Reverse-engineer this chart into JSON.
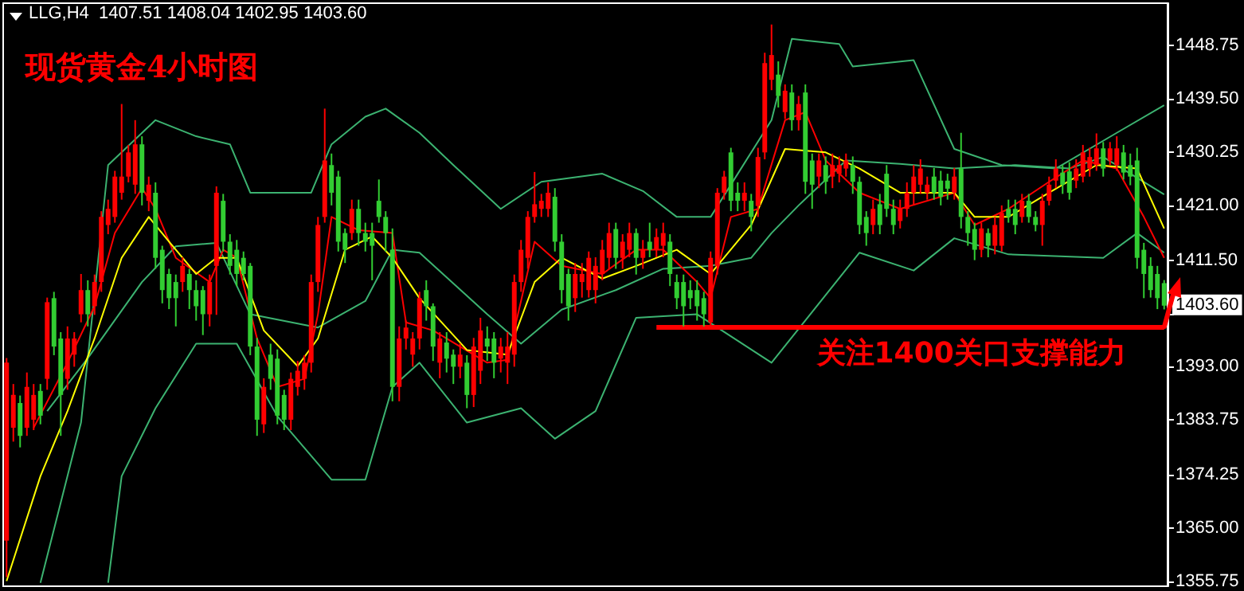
{
  "chart_data": {
    "type": "candlestick",
    "title": "LLG,H4  1407.51 1408.04 1402.95 1403.60",
    "subtitle": "现货黄金4小时图",
    "categories": [
      null,
      null,
      null,
      null,
      null,
      null,
      null,
      null,
      null,
      null,
      null,
      null,
      null,
      null,
      null,
      null,
      null,
      null,
      null,
      null,
      null,
      null,
      null,
      null,
      null,
      null,
      null,
      null,
      null,
      null,
      null,
      null,
      null,
      null,
      null,
      null,
      null,
      null,
      null,
      null,
      null,
      null,
      null,
      null,
      null,
      null,
      null,
      null,
      null,
      null,
      null,
      null,
      null,
      null,
      null,
      null,
      null,
      null,
      null,
      null,
      null,
      null,
      null,
      null,
      null,
      null,
      null,
      null,
      null,
      null,
      null,
      null,
      null,
      null,
      null,
      null,
      null,
      null,
      null,
      null,
      null,
      null,
      null,
      null,
      null,
      null,
      null,
      null,
      null,
      null,
      null,
      null,
      null,
      null,
      null,
      null,
      null,
      null,
      null,
      null,
      null,
      null,
      null,
      null,
      null,
      null,
      null,
      null,
      null,
      null,
      null,
      null,
      null,
      null,
      null,
      null,
      null,
      null,
      null,
      null,
      null,
      null,
      null,
      null,
      null,
      null,
      null,
      null,
      null,
      null,
      null,
      null,
      null,
      null,
      null,
      null,
      null,
      null,
      null,
      null,
      null,
      null,
      null,
      null,
      null,
      null,
      null,
      null,
      null,
      null,
      null,
      null,
      null,
      null,
      null,
      null,
      null,
      null,
      null,
      null,
      null,
      null,
      null,
      null,
      null,
      null,
      null,
      null,
      null,
      null,
      null,
      null
    ],
    "ylim": [
      1354.9,
      1456.1
    ],
    "yticks": [
      1448.75,
      {
        "value": 1439.5,
        "label": "1439.50"
      },
      1430.25,
      {
        "value": 1421,
        "label": "1421.00"
      },
      {
        "value": 1411.5,
        "label": "1411.50"
      },
      {
        "value": 1402.25,
        "label": null
      },
      {
        "value": 1393,
        "label": "1393.00"
      },
      1383.75,
      1374.25,
      {
        "value": 1365,
        "label": "1365.00"
      },
      1355.75
    ],
    "tick_labels": "y",
    "line_style": "solid",
    "ref_lines": [
      {
        "axis": "y",
        "value": 1400,
        "label": "关注1400关口支撑能力",
        "color": "#ff0000"
      }
    ],
    "annotations": [
      "1403.60"
    ],
    "ohlc": [
      [
        1362.8,
        1394.5,
        1356.5,
        1393.7
      ],
      [
        1382.4,
        1390,
        1380,
        1388.1
      ],
      [
        1386.7,
        1388,
        1379,
        1381
      ],
      [
        1382.4,
        1392,
        1381,
        1389.5
      ],
      [
        1383.8,
        1390,
        1382,
        1388.1
      ],
      [
        1388.8,
        1390,
        1383,
        1384.5
      ],
      [
        1390.9,
        1405,
        1389,
        1404.2
      ],
      [
        1404.9,
        1406,
        1395,
        1396.5
      ],
      [
        1397.9,
        1399,
        1381,
        1388.1
      ],
      [
        1390.9,
        1400,
        1389,
        1397.9
      ],
      [
        1395.1,
        1399,
        1393,
        1397.9
      ],
      [
        1402.1,
        1409.1,
        1400.7,
        1406.3
      ],
      [
        1406.3,
        1408,
        1400,
        1402.1
      ],
      [
        1403.5,
        1409,
        1402,
        1407.7
      ],
      [
        1407.7,
        1420,
        1406,
        1419
      ],
      [
        1417.6,
        1422,
        1416,
        1420.4
      ],
      [
        1419,
        1427,
        1418,
        1426
      ],
      [
        1423.2,
        1438.6,
        1422,
        1426
      ],
      [
        1426,
        1431.5,
        1425,
        1430.2
      ],
      [
        1424.6,
        1435.8,
        1423,
        1431.6
      ],
      [
        1431.6,
        1433,
        1421,
        1423.2
      ],
      [
        1421.8,
        1426,
        1420,
        1424.6
      ],
      [
        1423.2,
        1425,
        1410,
        1411.9
      ],
      [
        1413.3,
        1414,
        1404,
        1406.3
      ],
      [
        1409.1,
        1410,
        1403,
        1404.9
      ],
      [
        1407.7,
        1409,
        1400,
        1404.9
      ],
      [
        1407.7,
        1412,
        1406,
        1410.5
      ],
      [
        1409.1,
        1410,
        1403,
        1406.3
      ],
      [
        1406.3,
        1408,
        1401,
        1403.5
      ],
      [
        1406.3,
        1407,
        1398.5,
        1402.1
      ],
      [
        1402.1,
        1409,
        1400,
        1407.7
      ],
      [
        1410.5,
        1424.3,
        1402,
        1423.2
      ],
      [
        1421.8,
        1423,
        1413,
        1414.7
      ],
      [
        1414.7,
        1416,
        1409,
        1410.5
      ],
      [
        1413.3,
        1415,
        1407,
        1409.1
      ],
      [
        1411.9,
        1413,
        1408,
        1409.1
      ],
      [
        1410.5,
        1411,
        1395,
        1396.5
      ],
      [
        1396.5,
        1398,
        1381,
        1383.8
      ],
      [
        1383,
        1391,
        1381.5,
        1389.5
      ],
      [
        1395.1,
        1397,
        1389,
        1390.9
      ],
      [
        1394.4,
        1396,
        1383,
        1384.5
      ],
      [
        1388.1,
        1389,
        1382,
        1383.8
      ],
      [
        1383.8,
        1392,
        1382,
        1390.9
      ],
      [
        1389.5,
        1394,
        1388,
        1392.3
      ],
      [
        1390.9,
        1395,
        1389,
        1393.7
      ],
      [
        1393.7,
        1409,
        1392,
        1407.7
      ],
      [
        1407.7,
        1419,
        1406,
        1417.6
      ],
      [
        1419,
        1437.8,
        1418,
        1428.8
      ],
      [
        1428,
        1430,
        1421,
        1423.2
      ],
      [
        1426,
        1427,
        1413,
        1414.7
      ],
      [
        1416.2,
        1417,
        1411,
        1413.3
      ],
      [
        1416.2,
        1422,
        1415,
        1420.4
      ],
      [
        1420.4,
        1422,
        1414,
        1416.2
      ],
      [
        1416.2,
        1418,
        1413,
        1414.7
      ],
      [
        1416.2,
        1418,
        1408,
        1414
      ],
      [
        1421.8,
        1425.5,
        1418,
        1419
      ],
      [
        1419,
        1420,
        1413,
        1416.2
      ],
      [
        1413.3,
        1417,
        1387,
        1389.5
      ],
      [
        1389.5,
        1400,
        1387,
        1397.9
      ],
      [
        1397.9,
        1401,
        1396,
        1399.8
      ],
      [
        1395.1,
        1399,
        1393,
        1397.9
      ],
      [
        1397.9,
        1406,
        1396,
        1404.9
      ],
      [
        1406.3,
        1408,
        1401,
        1403.5
      ],
      [
        1403.5,
        1404,
        1394,
        1396.5
      ],
      [
        1393.7,
        1399,
        1391,
        1397.9
      ],
      [
        1397.2,
        1399,
        1392,
        1394.4
      ],
      [
        1395.1,
        1396,
        1390,
        1393
      ],
      [
        1393,
        1397,
        1391,
        1395.1
      ],
      [
        1393.7,
        1395,
        1385.8,
        1388.1
      ],
      [
        1388.1,
        1398,
        1386,
        1396.5
      ],
      [
        1392.3,
        1401.5,
        1390,
        1399.3
      ],
      [
        1397.9,
        1400,
        1394,
        1396.5
      ],
      [
        1397.9,
        1399,
        1391,
        1393.7
      ],
      [
        1394.4,
        1398,
        1392,
        1396.5
      ],
      [
        1393.7,
        1399,
        1390,
        1396.5
      ],
      [
        1395.1,
        1409,
        1393,
        1407.7
      ],
      [
        1407.7,
        1415,
        1406,
        1413.3
      ],
      [
        1411.9,
        1420,
        1410,
        1419
      ],
      [
        1419,
        1426.8,
        1418,
        1421.2
      ],
      [
        1420.4,
        1423,
        1419,
        1421.8
      ],
      [
        1420.4,
        1425,
        1419,
        1423.2
      ],
      [
        1422.5,
        1424,
        1413,
        1414.7
      ],
      [
        1414.7,
        1416,
        1404,
        1406.3
      ],
      [
        1409.1,
        1410,
        1401,
        1403.5
      ],
      [
        1404.9,
        1411,
        1402.5,
        1409.1
      ],
      [
        1407.7,
        1411,
        1405,
        1409.1
      ],
      [
        1406.3,
        1413,
        1405,
        1411.9
      ],
      [
        1406.3,
        1412,
        1404,
        1410.5
      ],
      [
        1409.1,
        1415,
        1408,
        1413.3
      ],
      [
        1411.9,
        1418,
        1410,
        1416.2
      ],
      [
        1416.9,
        1418,
        1410,
        1411.9
      ],
      [
        1411.9,
        1416,
        1410,
        1414.7
      ],
      [
        1413.3,
        1418,
        1412,
        1416.2
      ],
      [
        1416.2,
        1417,
        1409,
        1411.9
      ],
      [
        1411.9,
        1415,
        1410,
        1413.3
      ],
      [
        1414.7,
        1418,
        1412,
        1413.3
      ],
      [
        1413.3,
        1417,
        1412,
        1415.5
      ],
      [
        1414,
        1418,
        1412,
        1416.2
      ],
      [
        1414.7,
        1416,
        1407,
        1409.1
      ],
      [
        1407.7,
        1409,
        1403,
        1404.9
      ],
      [
        1407.7,
        1409,
        1400,
        1403.5
      ],
      [
        1406.3,
        1408,
        1403,
        1404.9
      ],
      [
        1406.3,
        1408,
        1401,
        1403.5
      ],
      [
        1404.9,
        1406,
        1400,
        1402.1
      ],
      [
        1400.7,
        1413,
        1399.5,
        1411.9
      ],
      [
        1410.5,
        1424,
        1409,
        1423.2
      ],
      [
        1423.2,
        1427,
        1422,
        1426
      ],
      [
        1430.2,
        1431,
        1420,
        1421.8
      ],
      [
        1423.2,
        1425,
        1420,
        1421.8
      ],
      [
        1421.8,
        1425,
        1420,
        1423.2
      ],
      [
        1421.8,
        1423,
        1416.5,
        1419
      ],
      [
        1420.9,
        1431,
        1419,
        1429.4
      ],
      [
        1430.2,
        1447.5,
        1429,
        1445.7
      ],
      [
        1442.8,
        1452.4,
        1441,
        1447.1
      ],
      [
        1443.7,
        1446,
        1438,
        1440
      ],
      [
        1437.2,
        1442,
        1436,
        1440.9
      ],
      [
        1440.6,
        1442,
        1434,
        1435.8
      ],
      [
        1435.8,
        1440,
        1434,
        1438.6
      ],
      [
        1440.6,
        1442,
        1423,
        1425.1
      ],
      [
        1428.8,
        1430,
        1420.4,
        1424.6
      ],
      [
        1426,
        1430,
        1424,
        1428.8
      ],
      [
        1428,
        1429.5,
        1423,
        1425.1
      ],
      [
        1426,
        1430,
        1424,
        1428
      ],
      [
        1426.5,
        1429.5,
        1425,
        1428
      ],
      [
        1427.4,
        1430,
        1426,
        1428.8
      ],
      [
        1428,
        1429.5,
        1423,
        1425.1
      ],
      [
        1425.1,
        1426,
        1416,
        1417.6
      ],
      [
        1419,
        1420,
        1414,
        1416.2
      ],
      [
        1417.6,
        1422,
        1416,
        1420.4
      ],
      [
        1421.2,
        1423,
        1416,
        1417.6
      ],
      [
        1426.5,
        1428,
        1419,
        1420.4
      ],
      [
        1420.4,
        1422,
        1416,
        1417.6
      ],
      [
        1418.3,
        1422,
        1417,
        1420.4
      ],
      [
        1420.4,
        1425,
        1419,
        1423.2
      ],
      [
        1423.2,
        1428,
        1421,
        1426
      ],
      [
        1424.6,
        1429,
        1423,
        1427.4
      ],
      [
        1423.2,
        1426,
        1422,
        1424.6
      ],
      [
        1426,
        1427.5,
        1422,
        1423.2
      ],
      [
        1425.3,
        1427,
        1421,
        1422.5
      ],
      [
        1425.3,
        1426.5,
        1422,
        1423.9
      ],
      [
        1423.2,
        1427.5,
        1422,
        1426
      ],
      [
        1427.4,
        1433.6,
        1417,
        1419
      ],
      [
        1419,
        1420,
        1414,
        1416.2
      ],
      [
        1416.9,
        1418,
        1411.5,
        1413.3
      ],
      [
        1413.3,
        1418,
        1412,
        1417
      ],
      [
        1416.2,
        1417,
        1412,
        1414
      ],
      [
        1414,
        1419,
        1412.5,
        1417.6
      ],
      [
        1414,
        1421,
        1413,
        1419.7
      ],
      [
        1420.4,
        1422,
        1418,
        1419
      ],
      [
        1420.4,
        1422,
        1416,
        1417.6
      ],
      [
        1419,
        1423,
        1418,
        1421.8
      ],
      [
        1421.8,
        1423,
        1418,
        1419
      ],
      [
        1419,
        1420,
        1416.5,
        1417.6
      ],
      [
        1417.6,
        1423,
        1414,
        1421.8
      ],
      [
        1421.8,
        1426,
        1421,
        1424.6
      ],
      [
        1425.3,
        1429,
        1424,
        1427.4
      ],
      [
        1426.7,
        1428,
        1423,
        1424.6
      ],
      [
        1426.9,
        1428.5,
        1422,
        1423.2
      ],
      [
        1425.3,
        1429,
        1424,
        1427.4
      ],
      [
        1426,
        1431.5,
        1425,
        1430.2
      ],
      [
        1427.4,
        1431,
        1426,
        1429.4
      ],
      [
        1428,
        1433.5,
        1427,
        1430.9
      ],
      [
        1430.9,
        1432,
        1426,
        1427.4
      ],
      [
        1428.8,
        1432,
        1428,
        1430.9
      ],
      [
        1428,
        1433,
        1427,
        1430.9
      ],
      [
        1430.2,
        1431.5,
        1425.5,
        1426.7
      ],
      [
        1428,
        1430,
        1424.5,
        1426
      ],
      [
        1428.8,
        1431,
        1410,
        1411.9
      ],
      [
        1413.3,
        1414.5,
        1404.9,
        1409.1
      ],
      [
        1410.5,
        1412,
        1405,
        1406.3
      ],
      [
        1409.1,
        1410.5,
        1403,
        1404.9
      ],
      [
        1407.51,
        1408.04,
        1402.95,
        1403.6
      ]
    ],
    "colors": [
      "#ff0000",
      "#ff0000",
      "#32cd32",
      "#ff0000",
      "#ff0000",
      "#32cd32",
      "#ff0000",
      "#32cd32",
      "#32cd32",
      "#ff0000",
      "#ff0000",
      "#ff0000",
      "#32cd32",
      "#ff0000",
      "#ff0000",
      "#ff0000",
      "#ff0000",
      "#ff0000",
      "#ff0000",
      "#ff0000",
      "#32cd32",
      "#ff0000",
      "#32cd32",
      "#32cd32",
      "#32cd32",
      "#32cd32",
      "#ff0000",
      "#32cd32",
      "#32cd32",
      "#32cd32",
      "#ff0000",
      "#ff0000",
      "#32cd32",
      "#32cd32",
      "#32cd32",
      "#32cd32",
      "#32cd32",
      "#32cd32",
      "#ff0000",
      "#32cd32",
      "#32cd32",
      "#32cd32",
      "#ff0000",
      "#ff0000",
      "#ff0000",
      "#ff0000",
      "#ff0000",
      "#ff0000",
      "#32cd32",
      "#32cd32",
      "#32cd32",
      "#ff0000",
      "#32cd32",
      "#32cd32",
      "#32cd32",
      "#32cd32",
      "#32cd32",
      "#32cd32",
      "#ff0000",
      "#ff0000",
      "#ff0000",
      "#ff0000",
      "#32cd32",
      "#32cd32",
      "#ff0000",
      "#32cd32",
      "#32cd32",
      "#ff0000",
      "#32cd32",
      "#ff0000",
      "#ff0000",
      "#32cd32",
      "#32cd32",
      "#ff0000",
      "#ff0000",
      "#ff0000",
      "#ff0000",
      "#ff0000",
      "#ff0000",
      "#ff0000",
      "#ff0000",
      "#32cd32",
      "#32cd32",
      "#32cd32",
      "#ff0000",
      "#ff0000",
      "#ff0000",
      "#ff0000",
      "#ff0000",
      "#ff0000",
      "#32cd32",
      "#ff0000",
      "#ff0000",
      "#32cd32",
      "#ff0000",
      "#32cd32",
      "#ff0000",
      "#ff0000",
      "#32cd32",
      "#32cd32",
      "#32cd32",
      "#32cd32",
      "#32cd32",
      "#32cd32",
      "#ff0000",
      "#ff0000",
      "#ff0000",
      "#32cd32",
      "#32cd32",
      "#ff0000",
      "#32cd32",
      "#ff0000",
      "#ff0000",
      "#ff0000",
      "#32cd32",
      "#ff0000",
      "#32cd32",
      "#ff0000",
      "#32cd32",
      "#32cd32",
      "#ff0000",
      "#32cd32",
      "#ff0000",
      "#ff0000",
      "#ff0000",
      "#32cd32",
      "#32cd32",
      "#32cd32",
      "#ff0000",
      "#32cd32",
      "#32cd32",
      "#32cd32",
      "#ff0000",
      "#ff0000",
      "#ff0000",
      "#ff0000",
      "#ff0000",
      "#32cd32",
      "#32cd32",
      "#32cd32",
      "#ff0000",
      "#32cd32",
      "#32cd32",
      "#32cd32",
      "#ff0000",
      "#32cd32",
      "#ff0000",
      "#ff0000",
      "#32cd32",
      "#32cd32",
      "#ff0000",
      "#32cd32",
      "#32cd32",
      "#ff0000",
      "#ff0000",
      "#ff0000",
      "#32cd32",
      "#32cd32",
      "#ff0000",
      "#ff0000",
      "#ff0000",
      "#ff0000",
      "#32cd32",
      "#ff0000",
      "#ff0000",
      "#32cd32",
      "#32cd32",
      "#32cd32",
      "#32cd32",
      "#32cd32",
      "#32cd32",
      "#32cd32"
    ],
    "series": [
      {
        "type": "line",
        "color": "#3cb371",
        "values": [
          null,
          null,
          null,
          null,
          null,
          1355.5,
          null,
          null,
          null,
          null,
          null,
          1383.3,
          null,
          null,
          null,
          1428.0,
          null,
          null,
          null,
          null,
          null,
          null,
          1435.8,
          null,
          null,
          null,
          null,
          null,
          1433.0,
          null,
          null,
          null,
          null,
          1431.6,
          null,
          null,
          1423.2,
          null,
          null,
          null,
          null,
          null,
          null,
          null,
          null,
          1423.2,
          null,
          null,
          1431.6,
          null,
          null,
          null,
          null,
          1436.4,
          null,
          null,
          1437.8,
          null,
          null,
          null,
          null,
          1433.6,
          null,
          null,
          null,
          null,
          1428.0,
          null,
          null,
          null,
          null,
          null,
          null,
          1420.4,
          null,
          null,
          null,
          null,
          null,
          1425.1,
          null,
          null,
          null,
          null,
          null,
          null,
          null,
          null,
          1426.5,
          null,
          null,
          null,
          null,
          null,
          1423.5,
          null,
          null,
          null,
          null,
          1419.0,
          null,
          null,
          null,
          null,
          1419.0,
          null,
          null,
          1424.6,
          null,
          null,
          null,
          null,
          null,
          1435.8,
          null,
          null,
          1449.9,
          null,
          null,
          null,
          null,
          null,
          null,
          1449.0,
          null,
          1445.1,
          null,
          null,
          null,
          null,
          null,
          null,
          null,
          null,
          1446.2,
          null,
          null,
          null,
          null,
          null,
          1430.8,
          null,
          null,
          null,
          null,
          null,
          null,
          1428.0,
          null,
          null,
          null,
          null,
          null,
          null,
          null,
          1427.4,
          null,
          null,
          null,
          null,
          null,
          null,
          null,
          null,
          1433.6,
          null,
          null,
          null,
          null,
          null,
          null,
          1438.4
        ]
      },
      {
        "type": "line",
        "color": "#3cb371",
        "values": [
          null,
          null,
          null,
          null,
          null,
          null,
          1385.3,
          null,
          null,
          null,
          null,
          null,
          1394.5,
          null,
          null,
          null,
          null,
          null,
          null,
          null,
          1407.7,
          null,
          null,
          null,
          null,
          1413.9,
          null,
          null,
          null,
          null,
          null,
          1414.5,
          null,
          null,
          null,
          null,
          1402.1,
          null,
          null,
          null,
          null,
          null,
          null,
          null,
          null,
          null,
          1399.8,
          null,
          null,
          null,
          null,
          null,
          null,
          1404.4,
          null,
          null,
          null,
          1413.3,
          null,
          null,
          null,
          1412.8,
          null,
          null,
          null,
          null,
          null,
          null,
          null,
          null,
          null,
          1402.1,
          null,
          null,
          null,
          null,
          1397.0,
          null,
          null,
          null,
          null,
          null,
          1402.9,
          null,
          null,
          null,
          null,
          null,
          null,
          null,
          1406.3,
          null,
          null,
          null,
          null,
          null,
          null,
          1410.0,
          null,
          null,
          null,
          null,
          null,
          null,
          1410.5,
          null,
          null,
          null,
          null,
          null,
          1411.9,
          null,
          null,
          1416.2,
          null,
          null,
          null,
          1421.0,
          null,
          null,
          null,
          null,
          null,
          null,
          1428.8,
          null,
          null,
          null,
          null,
          null,
          null,
          null,
          1428.2,
          null,
          null,
          null,
          null,
          null,
          null,
          null,
          1427.4,
          null,
          null,
          null,
          null,
          null,
          null,
          null,
          null,
          1428.0,
          null,
          null,
          null,
          null,
          null,
          null,
          null,
          1427.4,
          null,
          null,
          null,
          null,
          1429.4,
          null,
          null,
          null,
          null,
          null,
          null,
          null,
          null,
          1422.9
        ]
      },
      {
        "type": "line",
        "color": "#3cb371",
        "values": [
          null,
          null,
          null,
          null,
          null,
          null,
          null,
          null,
          null,
          null,
          null,
          null,
          null,
          null,
          null,
          1355.5,
          null,
          1374.0,
          null,
          null,
          null,
          null,
          1385.8,
          null,
          null,
          null,
          null,
          null,
          1397.0,
          null,
          null,
          null,
          null,
          null,
          1397.0,
          null,
          null,
          null,
          null,
          null,
          1384.4,
          null,
          null,
          null,
          null,
          null,
          null,
          null,
          1373.4,
          null,
          null,
          null,
          null,
          1373.4,
          null,
          null,
          null,
          1389.5,
          null,
          null,
          null,
          1393.7,
          null,
          null,
          null,
          null,
          null,
          null,
          1383.3,
          null,
          null,
          null,
          null,
          null,
          null,
          null,
          1385.8,
          null,
          null,
          null,
          null,
          1380.5,
          null,
          null,
          null,
          null,
          null,
          1385.3,
          null,
          null,
          null,
          null,
          null,
          1401.5,
          null,
          null,
          null,
          null,
          null,
          null,
          null,
          null,
          1402.1,
          null,
          null,
          null,
          null,
          null,
          null,
          null,
          null,
          null,
          null,
          1393.7,
          null,
          null,
          null,
          null,
          null,
          null,
          null,
          null,
          null,
          null,
          null,
          null,
          1412.8,
          null,
          null,
          null,
          null,
          null,
          null,
          null,
          1409.7,
          null,
          null,
          null,
          null,
          null,
          1415.3,
          null,
          null,
          null,
          null,
          null,
          null,
          null,
          1412.5,
          null,
          null,
          null,
          null,
          null,
          null,
          null,
          null,
          null,
          null,
          null,
          null,
          null,
          1411.9,
          null,
          null,
          null,
          null,
          1416.2,
          null,
          null,
          null,
          1412.8
        ]
      },
      {
        "type": "line",
        "color": "#ff0000",
        "values": [
          null,
          null,
          null,
          null,
          1382.4,
          null,
          null,
          null,
          null,
          1393.7,
          null,
          null,
          null,
          1403.5,
          null,
          null,
          1416.2,
          null,
          null,
          null,
          1424.0,
          null,
          1420.4,
          null,
          null,
          1411.9,
          null,
          null,
          null,
          null,
          1407.7,
          null,
          1413.3,
          null,
          1411.9,
          null,
          null,
          1397.9,
          null,
          null,
          1389.5,
          null,
          null,
          null,
          1390.9,
          null,
          1402.1,
          null,
          1419.0,
          null,
          null,
          null,
          1416.7,
          null,
          null,
          null,
          null,
          1416.2,
          null,
          1400.7,
          null,
          null,
          null,
          1399.3,
          null,
          null,
          null,
          null,
          null,
          null,
          null,
          1393.7,
          null,
          null,
          1394.2,
          null,
          null,
          null,
          1414.7,
          null,
          null,
          null,
          1410.5,
          null,
          null,
          null,
          null,
          null,
          1409.1,
          null,
          null,
          null,
          null,
          1413.3,
          null,
          null,
          null,
          1413.3,
          null,
          null,
          null,
          null,
          1407.7,
          null,
          1404.9,
          null,
          null,
          1419.0,
          null,
          null,
          null,
          1420.4,
          null,
          null,
          null,
          1435.8,
          null,
          null,
          1437.2,
          null,
          null,
          1428.8,
          null,
          null,
          null,
          null,
          1423.2,
          null,
          null,
          null,
          null,
          null,
          1420.4,
          null,
          null,
          null,
          null,
          null,
          null,
          null,
          1423.2,
          null,
          null,
          1417.6,
          null,
          null,
          null,
          null,
          1420.4,
          null,
          null,
          null,
          null,
          null,
          1425.1,
          null,
          null,
          null,
          null,
          1428.8,
          null,
          null,
          null,
          null,
          1427.4,
          null,
          null,
          null,
          1419.0,
          null,
          null,
          1411.9
        ]
      },
      {
        "type": "line",
        "color": "#ffff00",
        "values": [
          1355.8,
          null,
          null,
          null,
          null,
          1374.0,
          null,
          null,
          null,
          1385.3,
          null,
          null,
          null,
          1397.9,
          null,
          null,
          null,
          1411.9,
          null,
          null,
          null,
          1419.0,
          null,
          null,
          1414.7,
          null,
          null,
          null,
          1409.1,
          null,
          null,
          1411.9,
          null,
          null,
          1411.9,
          null,
          null,
          null,
          1399.3,
          null,
          null,
          null,
          null,
          1393.1,
          null,
          null,
          1397.9,
          null,
          null,
          null,
          1413.3,
          null,
          null,
          null,
          1415.6,
          null,
          null,
          1411.9,
          null,
          null,
          null,
          1404.9,
          null,
          null,
          null,
          null,
          null,
          null,
          1395.9,
          null,
          null,
          null,
          null,
          null,
          1395.1,
          null,
          null,
          null,
          1407.7,
          null,
          null,
          null,
          1411.9,
          null,
          null,
          null,
          null,
          null,
          1408.3,
          null,
          null,
          null,
          null,
          1410.5,
          null,
          null,
          null,
          null,
          null,
          1413.3,
          null,
          null,
          null,
          null,
          1409.1,
          null,
          null,
          null,
          null,
          null,
          1417.6,
          null,
          null,
          null,
          null,
          1430.8,
          null,
          null,
          null,
          null,
          null,
          1430.2,
          null,
          null,
          null,
          null,
          1427.4,
          null,
          null,
          null,
          null,
          null,
          1423.2,
          null,
          null,
          null,
          null,
          null,
          null,
          null,
          1423.2,
          null,
          null,
          1419.0,
          null,
          null,
          null,
          null,
          1419.0,
          null,
          null,
          null,
          null,
          null,
          1423.2,
          null,
          null,
          null,
          null,
          null,
          null,
          1428.0,
          null,
          null,
          null,
          null,
          null,
          1427.4,
          null,
          null,
          null,
          1417.0
        ]
      }
    ]
  }
}
